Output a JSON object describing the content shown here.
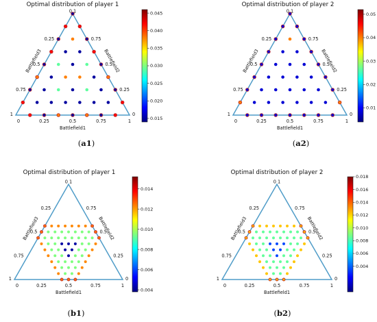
{
  "colors": {
    "axis": "#4f9cc8",
    "point_edge": "#c03030",
    "jet_scale": [
      "#00007f",
      "#0000ff",
      "#007fff",
      "#00ffff",
      "#7fff7f",
      "#ffff00",
      "#ff7f00",
      "#ff0000",
      "#7f0000"
    ]
  },
  "chart_data": [
    {
      "type": "scatter",
      "panel": "a1",
      "title": "Optimal distribution of player 1",
      "caption": "(a1)",
      "xlabel": "Battlefield1",
      "side_labels": {
        "left": "Battlefield3",
        "right": "Battlefield2"
      },
      "corner_labels": {
        "top": "0 1",
        "bottom_left": "1",
        "bottom_right": "0"
      },
      "left_ticks": [
        "0.25",
        "0.5",
        "0.75"
      ],
      "right_ticks": [
        "0.75",
        "0.5",
        "0.25"
      ],
      "bottom_ticks": [
        "0",
        "0.25",
        "0.5",
        "0.75",
        "1"
      ],
      "grid_divisions": 8,
      "colorbar": {
        "min": 0.014,
        "max": 0.046,
        "ticks": [
          "0.045",
          "0.040",
          "0.035",
          "0.030",
          "0.025",
          "0.020",
          "0.015"
        ],
        "tick_values": [
          0.045,
          0.04,
          0.035,
          0.03,
          0.025,
          0.02,
          0.015
        ]
      },
      "rows": [
        [
          0.015
        ],
        [
          0.042,
          0.042
        ],
        [
          0.015,
          0.038,
          0.015
        ],
        [
          0.042,
          0.015,
          0.015,
          0.042
        ],
        [
          0.015,
          0.029,
          0.015,
          0.029,
          0.015
        ],
        [
          0.038,
          0.015,
          0.038,
          0.038,
          0.015,
          0.038
        ],
        [
          0.015,
          0.015,
          0.029,
          0.015,
          0.029,
          0.015,
          0.015
        ],
        [
          0.042,
          0.015,
          0.015,
          0.015,
          0.015,
          0.015,
          0.015,
          0.042
        ],
        [
          null,
          0.042,
          0.015,
          0.038,
          0.015,
          0.038,
          0.015,
          0.042,
          null
        ]
      ]
    },
    {
      "type": "scatter",
      "panel": "a2",
      "title": "Optimal distribution of player 2",
      "caption": "(a2)",
      "xlabel": "Battlefield1",
      "side_labels": {
        "left": "Battlefield3",
        "right": "Battlefield2"
      },
      "corner_labels": {
        "top": "0 1",
        "bottom_left": "1",
        "bottom_right": "0"
      },
      "left_ticks": [
        "0.25",
        "0.5",
        "0.75"
      ],
      "right_ticks": [
        "0.75",
        "0.5",
        "0.25"
      ],
      "bottom_ticks": [
        "0",
        "0.25",
        "0.5",
        "0.75",
        "1"
      ],
      "grid_divisions": 8,
      "colorbar": {
        "min": 0.004,
        "max": 0.052,
        "ticks": [
          "0.05",
          "0.04",
          "0.03",
          "0.02",
          "0.01"
        ],
        "tick_values": [
          0.05,
          0.04,
          0.03,
          0.02,
          0.01
        ]
      },
      "rows": [
        [
          0.008
        ],
        [
          0.008,
          0.008
        ],
        [
          0.008,
          0.04,
          0.008
        ],
        [
          0.008,
          0.008,
          0.008,
          0.008
        ],
        [
          0.008,
          0.008,
          0.008,
          0.008,
          0.008
        ],
        [
          0.008,
          0.008,
          0.008,
          0.008,
          0.008,
          0.008
        ],
        [
          0.008,
          0.008,
          0.008,
          0.008,
          0.008,
          0.008,
          0.008
        ],
        [
          0.04,
          0.008,
          0.008,
          0.008,
          0.008,
          0.008,
          0.008,
          0.04
        ],
        [
          null,
          0.008,
          0.008,
          0.008,
          0.008,
          0.008,
          0.008,
          0.008,
          null
        ]
      ]
    },
    {
      "type": "scatter",
      "panel": "b1",
      "title": "Optimal distribution of player 1",
      "caption": "(b1)",
      "xlabel": "Battlefield1",
      "side_labels": {
        "left": "Battlefield3",
        "right": "Battlefield2"
      },
      "corner_labels": {
        "top": "0 1",
        "bottom_left": "1",
        "bottom_right": "0"
      },
      "left_ticks": [
        "0.25",
        "0.5",
        "0.75"
      ],
      "right_ticks": [
        "0.75",
        "0.5",
        "0.25"
      ],
      "bottom_ticks": [
        "0",
        "0.25",
        "0.5",
        "0.75",
        "1"
      ],
      "grid_divisions": 16,
      "colorbar": {
        "min": 0.0038,
        "max": 0.0152,
        "ticks": [
          "0.014",
          "0.012",
          "0.010",
          "0.008",
          "0.006",
          "0.004"
        ],
        "tick_values": [
          0.014,
          0.012,
          0.01,
          0.008,
          0.006,
          0.004
        ]
      },
      "pattern": "hexagon: outer ring warm, inner area mostly blue",
      "ring_values": {
        "edge": 0.0125,
        "second": 0.0095,
        "inner": 0.0042
      }
    },
    {
      "type": "scatter",
      "panel": "b2",
      "title": "Optimal distribution of player 2",
      "caption": "(b2)",
      "xlabel": "Battlefield1",
      "side_labels": {
        "left": "Battlefield3",
        "right": "Battlefield2"
      },
      "corner_labels": {
        "top": "0 1",
        "bottom_left": "1",
        "bottom_right": "0"
      },
      "left_ticks": [
        "0.25",
        "0.5",
        "0.75"
      ],
      "right_ticks": [
        "0.75",
        "0.5",
        "0.25"
      ],
      "bottom_ticks": [
        "0",
        "0.25",
        "0.5",
        "0.75",
        "1"
      ],
      "grid_divisions": 16,
      "colorbar": {
        "min": 0.0,
        "max": 0.018,
        "ticks": [
          "0.018",
          "0.016",
          "0.014",
          "0.012",
          "0.010",
          "0.008",
          "0.006",
          "0.004"
        ],
        "tick_values": [
          0.018,
          0.016,
          0.014,
          0.012,
          0.01,
          0.008,
          0.006,
          0.004
        ]
      },
      "pattern": "hexagon: outer ring yellow, inner area mostly blue",
      "ring_values": {
        "edge": 0.0125,
        "second": 0.0085,
        "inner": 0.0035
      }
    }
  ]
}
